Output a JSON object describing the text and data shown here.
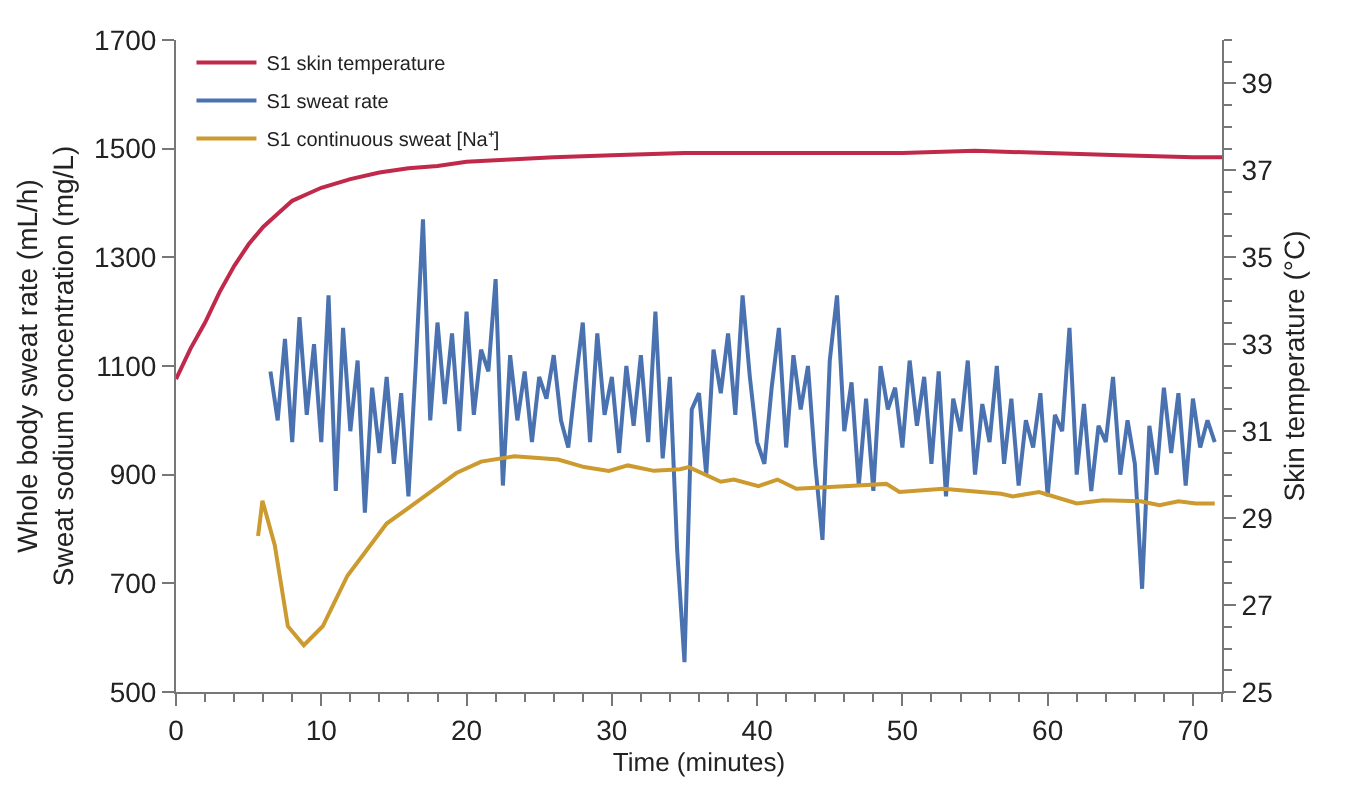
{
  "chart_data": {
    "type": "line",
    "xlabel": "Time (minutes)",
    "ylabel": "Whole body sweat rate (mL/h)\nSweat sodium concentration (mg/L)",
    "y2label": "Skin temperature (°C)",
    "xlim": [
      0,
      72
    ],
    "xticks": [
      0,
      10,
      20,
      30,
      40,
      50,
      60,
      70
    ],
    "ylim": [
      500,
      1700
    ],
    "yticks": [
      500,
      700,
      900,
      1100,
      1300,
      1500,
      1700
    ],
    "y2lim": [
      25,
      40
    ],
    "y2ticks": [
      25,
      27,
      29,
      31,
      33,
      35,
      37,
      39
    ],
    "legend": "top left",
    "marker": "none",
    "line_style": "solid",
    "series": [
      {
        "name": "S1 skin temperature",
        "color": "#c0294a",
        "axis": "y2",
        "x": [
          0,
          1,
          2,
          3,
          4,
          5,
          6,
          7,
          8,
          9,
          10,
          12,
          14,
          16,
          18,
          20,
          23,
          26,
          30,
          35,
          40,
          45,
          50,
          55,
          60,
          65,
          70,
          72
        ],
        "values": [
          32.2,
          32.9,
          33.5,
          34.2,
          34.8,
          35.3,
          35.7,
          36.0,
          36.3,
          36.45,
          36.6,
          36.8,
          36.95,
          37.05,
          37.1,
          37.2,
          37.25,
          37.3,
          37.35,
          37.4,
          37.4,
          37.4,
          37.4,
          37.45,
          37.4,
          37.35,
          37.3,
          37.3
        ]
      },
      {
        "name": "S1 sweat rate",
        "color": "#4a72b0",
        "x": [
          6.5,
          7,
          7.5,
          8,
          8.5,
          9,
          9.5,
          10,
          10.5,
          11,
          11.5,
          12,
          12.5,
          13,
          13.5,
          14,
          14.5,
          15,
          15.5,
          16,
          16.5,
          17,
          17.5,
          18,
          18.5,
          19,
          19.5,
          20,
          20.5,
          21,
          21.5,
          22,
          22.5,
          23,
          23.5,
          24,
          24.5,
          25,
          25.5,
          26,
          26.5,
          27,
          27.5,
          28,
          28.5,
          29,
          29.5,
          30,
          30.5,
          31,
          31.5,
          32,
          32.5,
          33,
          33.5,
          34,
          34.5,
          35,
          35.5,
          36,
          36.5,
          37,
          37.5,
          38,
          38.5,
          39,
          39.5,
          40,
          40.5,
          41,
          41.5,
          42,
          42.5,
          43,
          43.5,
          44,
          44.5,
          45,
          45.5,
          46,
          46.5,
          47,
          47.5,
          48,
          48.5,
          49,
          49.5,
          50,
          50.5,
          51,
          51.5,
          52,
          52.5,
          53,
          53.5,
          54,
          54.5,
          55,
          55.5,
          56,
          56.5,
          57,
          57.5,
          58,
          58.5,
          59,
          59.5,
          60,
          60.5,
          61,
          61.5,
          62,
          62.5,
          63,
          63.5,
          64,
          64.5,
          65,
          65.5,
          66,
          66.5,
          67,
          67.5,
          68,
          68.5,
          69,
          69.5,
          70,
          70.5,
          71,
          71.5
        ],
        "values": [
          1090,
          1000,
          1150,
          960,
          1190,
          1010,
          1140,
          960,
          1230,
          870,
          1170,
          980,
          1110,
          830,
          1060,
          940,
          1080,
          920,
          1050,
          860,
          1100,
          1370,
          1000,
          1180,
          1030,
          1160,
          980,
          1200,
          1010,
          1130,
          1090,
          1260,
          880,
          1120,
          1000,
          1090,
          960,
          1080,
          1040,
          1120,
          1000,
          950,
          1070,
          1180,
          960,
          1160,
          1010,
          1080,
          940,
          1100,
          990,
          1120,
          960,
          1200,
          930,
          1080,
          760,
          555,
          1020,
          1050,
          900,
          1130,
          1050,
          1160,
          1010,
          1230,
          1080,
          960,
          920,
          1060,
          1170,
          950,
          1120,
          1020,
          1100,
          920,
          780,
          1110,
          1230,
          980,
          1070,
          880,
          1040,
          870,
          1100,
          1020,
          1060,
          950,
          1110,
          990,
          1080,
          920,
          1090,
          860,
          1040,
          980,
          1110,
          900,
          1030,
          960,
          1100,
          920,
          1040,
          880,
          1000,
          950,
          1050,
          860,
          1010,
          980,
          1170,
          900,
          1030,
          870,
          990,
          960,
          1080,
          900,
          1000,
          920,
          690,
          990,
          900,
          1060,
          940,
          1050,
          880,
          1040,
          950,
          1000,
          960
        ]
      },
      {
        "name": "S1 continuous sweat [Na⁺]",
        "color": "#cc9a2e",
        "x": [
          5.65,
          5.95,
          6.8,
          7.7,
          8.8,
          10.1,
          11.8,
          14.5,
          16.7,
          19.3,
          21,
          23.3,
          26.3,
          28.1,
          29.8,
          31.1,
          32.9,
          34.7,
          35.3,
          37.5,
          38.4,
          40.1,
          41.4,
          42.7,
          46.3,
          48.9,
          49.8,
          52.8,
          56.8,
          57.6,
          59.4,
          62,
          63.8,
          66.4,
          67.7,
          69,
          70.2,
          71.5
        ],
        "values": [
          787,
          852,
          770,
          621,
          586,
          621,
          714,
          810,
          852,
          903,
          924,
          934,
          928,
          914,
          907,
          917,
          907,
          910,
          914,
          887,
          891,
          879,
          891,
          874,
          879,
          883,
          868,
          874,
          865,
          860,
          868,
          847,
          853,
          851,
          844,
          851,
          847,
          847
        ]
      }
    ]
  }
}
